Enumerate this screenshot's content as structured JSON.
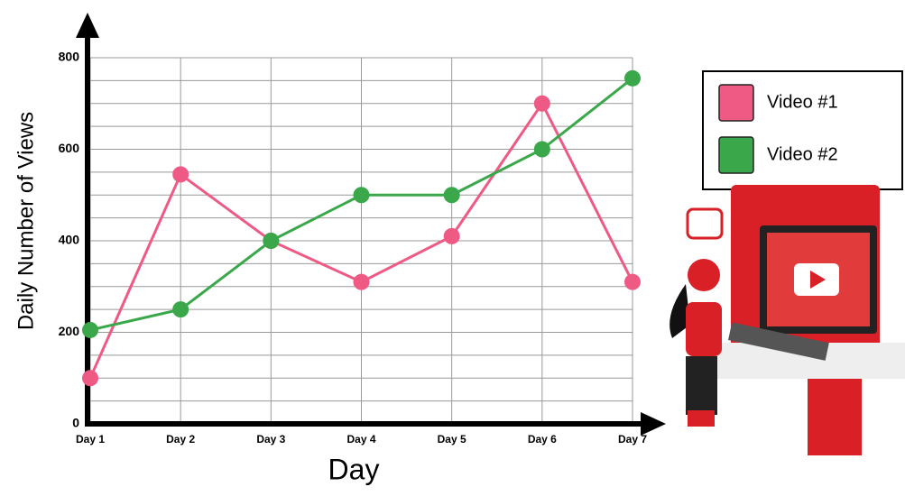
{
  "chart_data": {
    "type": "line",
    "x_label": "Day",
    "y_label": "Daily Number of Views",
    "categories": [
      "Day 1",
      "Day 2",
      "Day 3",
      "Day 4",
      "Day 5",
      "Day 6",
      "Day 7"
    ],
    "series": [
      {
        "name": "Video #1",
        "color": "#ef5a85",
        "values": [
          100,
          545,
          400,
          310,
          410,
          700,
          310
        ]
      },
      {
        "name": "Video #2",
        "color": "#3aa84a",
        "values": [
          205,
          250,
          400,
          500,
          500,
          600,
          755
        ]
      }
    ],
    "ylim": [
      0,
      800
    ],
    "yticks": [
      0,
      200,
      400,
      600,
      800
    ],
    "minor_yticks": [
      50,
      100,
      150,
      250,
      300,
      350,
      450,
      500,
      550,
      650,
      700,
      750
    ],
    "grid": true
  }
}
